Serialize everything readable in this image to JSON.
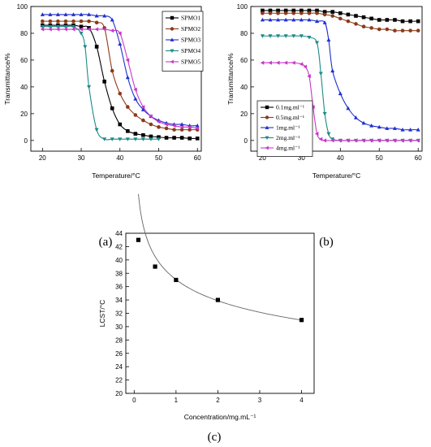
{
  "figure": {
    "captions": [
      "(a)",
      "(b)",
      "(c)"
    ]
  },
  "chart_data": [
    {
      "id": "a",
      "type": "line",
      "caption": "(a)",
      "xlabel": "Temperature/°C",
      "ylabel": "Transmittance/%",
      "xlim": [
        17,
        61
      ],
      "ylim": [
        -8,
        100
      ],
      "xticks": [
        20,
        30,
        40,
        50,
        60
      ],
      "yticks": [
        0,
        20,
        40,
        60,
        80,
        100
      ],
      "legend_position": "top-right",
      "series": [
        {
          "name": "SPMO1",
          "color": "#000000",
          "marker": "square",
          "x": [
            20,
            22,
            24,
            26,
            28,
            30,
            32,
            34,
            36,
            38,
            40,
            42,
            44,
            46,
            48,
            50,
            52,
            54,
            56,
            58,
            60
          ],
          "y": [
            86,
            86,
            86,
            86,
            86,
            85,
            84,
            70,
            44,
            24,
            12,
            7,
            5,
            4,
            3,
            2.5,
            2,
            2,
            2,
            1.5,
            1.5
          ]
        },
        {
          "name": "SPMO2",
          "color": "#8b3a1a",
          "marker": "circle",
          "x": [
            20,
            22,
            24,
            26,
            28,
            30,
            32,
            34,
            36,
            38,
            40,
            42,
            44,
            46,
            48,
            50,
            52,
            54,
            56,
            58,
            60
          ],
          "y": [
            89,
            89,
            89,
            89,
            89,
            89,
            89,
            88,
            84,
            52,
            35,
            25,
            19,
            15,
            12,
            10,
            9,
            8,
            8,
            8,
            8
          ]
        },
        {
          "name": "SPMO3",
          "color": "#1f2fd0",
          "marker": "triangle",
          "x": [
            20,
            22,
            24,
            26,
            28,
            30,
            32,
            34,
            36,
            38,
            40,
            42,
            44,
            46,
            48,
            50,
            52,
            54,
            56,
            58,
            60
          ],
          "y": [
            94,
            94,
            94,
            94,
            94,
            94,
            94,
            93,
            93,
            90,
            72,
            47,
            31,
            23,
            18,
            15,
            13,
            12,
            12,
            11,
            11
          ]
        },
        {
          "name": "SPMO4",
          "color": "#1c8a86",
          "marker": "triangle-down",
          "x": [
            20,
            22,
            24,
            26,
            28,
            30,
            31,
            32,
            34,
            36,
            38,
            40,
            42,
            44,
            46,
            48,
            50
          ],
          "y": [
            85,
            85,
            85,
            85,
            85,
            80,
            70,
            40,
            8,
            1,
            1,
            1,
            1,
            1,
            1,
            1,
            1
          ]
        },
        {
          "name": "SPMO5",
          "color": "#c838c8",
          "marker": "triangle-left",
          "x": [
            20,
            22,
            24,
            26,
            28,
            30,
            32,
            34,
            36,
            38,
            40,
            42,
            44,
            46,
            48,
            50,
            52,
            54,
            56,
            58,
            60
          ],
          "y": [
            83,
            83,
            83,
            83,
            83,
            83,
            83,
            83,
            83,
            82,
            80,
            60,
            38,
            25,
            18,
            14,
            12,
            11,
            10,
            10,
            9
          ]
        }
      ]
    },
    {
      "id": "b",
      "type": "line",
      "caption": "(b)",
      "xlabel": "Temperature/°C",
      "ylabel": "Transmittance/%",
      "xlim": [
        17,
        61
      ],
      "ylim": [
        -8,
        100
      ],
      "xticks": [
        20,
        30,
        40,
        50,
        60
      ],
      "yticks": [
        0,
        20,
        40,
        60,
        80,
        100
      ],
      "legend_position": "bottom-left",
      "series": [
        {
          "name": "0.1mg.ml⁻¹",
          "color": "#000000",
          "marker": "square",
          "x": [
            20,
            22,
            24,
            26,
            28,
            30,
            32,
            34,
            36,
            38,
            40,
            42,
            44,
            46,
            48,
            50,
            52,
            54,
            56,
            58,
            60
          ],
          "y": [
            97,
            97,
            97,
            97,
            97,
            97,
            97,
            97,
            96,
            96,
            95,
            94,
            93,
            92,
            91,
            90,
            90,
            90,
            89,
            89,
            89
          ]
        },
        {
          "name": "0.5mg.ml⁻¹",
          "color": "#8b3a1a",
          "marker": "circle",
          "x": [
            20,
            22,
            24,
            26,
            28,
            30,
            32,
            34,
            36,
            38,
            40,
            42,
            44,
            46,
            48,
            50,
            52,
            54,
            56,
            58,
            60
          ],
          "y": [
            95,
            95,
            95,
            95,
            95,
            95,
            95,
            95,
            94,
            93,
            91,
            89,
            87,
            85,
            84,
            83,
            83,
            82,
            82,
            82,
            82
          ]
        },
        {
          "name": "1mg.ml⁻¹",
          "color": "#1f2fd0",
          "marker": "triangle",
          "x": [
            20,
            22,
            24,
            26,
            28,
            30,
            32,
            34,
            36,
            37,
            38,
            40,
            42,
            44,
            46,
            48,
            50,
            52,
            54,
            56,
            58,
            60
          ],
          "y": [
            90,
            90,
            90,
            90,
            90,
            90,
            90,
            89,
            88,
            75,
            52,
            35,
            24,
            17,
            13,
            11,
            10,
            9,
            9,
            8,
            8,
            8
          ]
        },
        {
          "name": "2mg.ml⁻¹",
          "color": "#1c8a86",
          "marker": "triangle-down",
          "x": [
            20,
            22,
            24,
            26,
            28,
            30,
            32,
            34,
            35,
            36,
            37,
            38,
            40,
            42,
            44,
            46,
            48,
            50,
            52,
            54,
            56,
            58,
            60
          ],
          "y": [
            78,
            78,
            78,
            78,
            78,
            78,
            77,
            73,
            50,
            20,
            5,
            1,
            0,
            0,
            0,
            0,
            0,
            0,
            0,
            0,
            0,
            0,
            0
          ]
        },
        {
          "name": "4mg.ml⁻¹",
          "color": "#c838c8",
          "marker": "triangle-left",
          "x": [
            20,
            22,
            24,
            26,
            28,
            30,
            31,
            32,
            33,
            34,
            35,
            36,
            38,
            40,
            42,
            44,
            46,
            48,
            50,
            52,
            54,
            56,
            58,
            60
          ],
          "y": [
            58,
            58,
            58,
            58,
            58,
            57,
            55,
            48,
            25,
            5,
            1,
            0,
            0,
            0,
            0,
            0,
            0,
            0,
            0,
            0,
            0,
            0,
            0,
            0
          ]
        }
      ]
    },
    {
      "id": "c",
      "type": "scatter",
      "caption": "(c)",
      "xlabel": "Concentration/mg.mL⁻¹",
      "ylabel": "LCST/°C",
      "xlim": [
        -0.2,
        4.3
      ],
      "ylim": [
        20,
        44
      ],
      "xticks": [
        0,
        1,
        2,
        3,
        4
      ],
      "yticks": [
        20,
        22,
        24,
        26,
        28,
        30,
        32,
        34,
        36,
        38,
        40,
        42,
        44
      ],
      "fit_curve": true,
      "series": [
        {
          "name": "",
          "color": "#000000",
          "marker": "square",
          "x": [
            0.1,
            0.5,
            1,
            2,
            4
          ],
          "y": [
            43,
            39,
            37,
            34,
            31
          ]
        }
      ]
    }
  ]
}
